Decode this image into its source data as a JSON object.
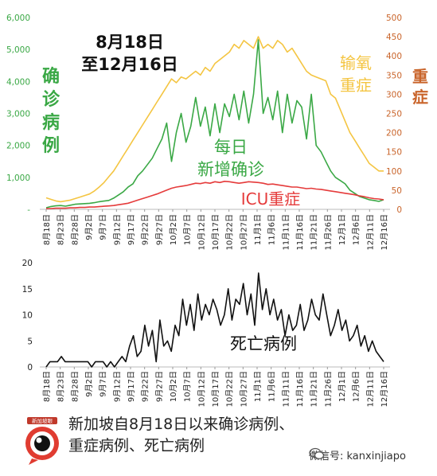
{
  "chart_data": [
    {
      "type": "line",
      "title": "8月18日\n至12月16日",
      "left_axis_label": "确诊病例",
      "right_axis_labels": [
        "输氧重症",
        "重症"
      ],
      "y_left_ticks": [
        "-",
        "1,000",
        "2,000",
        "3,000",
        "4,000",
        "5,000",
        "6,000"
      ],
      "y_left_range": [
        0,
        6000
      ],
      "y_right_ticks": [
        "0",
        "50",
        "100",
        "150",
        "200",
        "250",
        "300",
        "350",
        "400",
        "450",
        "500"
      ],
      "y_right_range": [
        0,
        500
      ],
      "x_ticks": [
        "8月18日",
        "8月23日",
        "8月28日",
        "9月2日",
        "9月7日",
        "9月12日",
        "9月17日",
        "9月22日",
        "9月27日",
        "10月2日",
        "10月7日",
        "10月12日",
        "10月17日",
        "10月22日",
        "10月27日",
        "11月1日",
        "11月6日",
        "11月11日",
        "11月16日",
        "11月21日",
        "11月26日",
        "12月1日",
        "12月6日",
        "12月11日",
        "12月16日"
      ],
      "series": [
        {
          "name": "每日新增确诊",
          "axis": "left",
          "color": "#3aa845",
          "values": [
            50,
            90,
            110,
            120,
            100,
            130,
            160,
            170,
            180,
            190,
            210,
            240,
            260,
            280,
            350,
            450,
            550,
            700,
            800,
            1050,
            1200,
            1400,
            1600,
            1900,
            2200,
            2700,
            1500,
            2400,
            3000,
            2100,
            2600,
            3500,
            2600,
            3200,
            2300,
            3300,
            2400,
            3300,
            2900,
            3600,
            2800,
            3700,
            2700,
            3600,
            5300,
            3000,
            3500,
            2800,
            3700,
            2400,
            3600,
            2700,
            3400,
            3200,
            2200,
            3600,
            2000,
            1800,
            1500,
            1200,
            1000,
            900,
            800,
            600,
            500,
            400,
            350,
            300,
            280,
            250,
            300
          ]
        },
        {
          "name": "输氧重症",
          "axis": "right",
          "color": "#f4c542",
          "values": [
            30,
            26,
            22,
            20,
            22,
            24,
            28,
            32,
            36,
            40,
            48,
            58,
            70,
            85,
            100,
            120,
            140,
            160,
            180,
            200,
            220,
            240,
            260,
            280,
            300,
            320,
            340,
            330,
            345,
            340,
            350,
            360,
            350,
            370,
            360,
            380,
            390,
            400,
            410,
            430,
            420,
            440,
            430,
            420,
            450,
            420,
            430,
            420,
            440,
            430,
            410,
            420,
            400,
            380,
            360,
            350,
            345,
            340,
            335,
            300,
            290,
            260,
            230,
            200,
            180,
            160,
            140,
            120,
            110,
            100,
            100
          ]
        },
        {
          "name": "ICU重症",
          "axis": "right",
          "color": "#e53b3b",
          "values": [
            2,
            2,
            3,
            3,
            3,
            4,
            4,
            5,
            5,
            6,
            6,
            7,
            8,
            9,
            10,
            12,
            14,
            16,
            20,
            24,
            28,
            32,
            36,
            40,
            45,
            50,
            55,
            58,
            60,
            62,
            65,
            68,
            67,
            70,
            68,
            72,
            70,
            73,
            72,
            70,
            68,
            70,
            72,
            71,
            70,
            68,
            65,
            66,
            64,
            62,
            60,
            58,
            58,
            56,
            54,
            55,
            53,
            52,
            50,
            48,
            46,
            44,
            42,
            40,
            38,
            35,
            33,
            30,
            28,
            27,
            25
          ]
        }
      ],
      "annotations": [
        "每日\n新增确诊",
        "输氧\n重症",
        "ICU重症"
      ]
    },
    {
      "type": "line",
      "title": "",
      "series_label": "死亡病例",
      "y_ticks": [
        "0",
        "5",
        "10",
        "15",
        "20"
      ],
      "y_range": [
        0,
        20
      ],
      "x_ticks": [
        "8月18日",
        "8月23日",
        "8月28日",
        "9月2日",
        "9月7日",
        "9月12日",
        "9月17日",
        "9月22日",
        "9月27日",
        "10月2日",
        "10月7日",
        "10月12日",
        "10月17日",
        "10月22日",
        "10月27日",
        "11月1日",
        "11月6日",
        "11月11日",
        "11月16日",
        "11月21日",
        "11月26日",
        "12月1日",
        "12月6日",
        "12月11日",
        "12月16日"
      ],
      "series": [
        {
          "name": "死亡病例",
          "color": "#111111",
          "values": [
            0,
            1,
            1,
            1,
            2,
            1,
            1,
            1,
            1,
            1,
            1,
            1,
            0,
            1,
            1,
            1,
            0,
            1,
            0,
            1,
            2,
            1,
            4,
            6,
            2,
            3,
            8,
            4,
            7,
            1,
            9,
            4,
            5,
            3,
            8,
            6,
            13,
            8,
            12,
            7,
            14,
            9,
            12,
            10,
            13,
            11,
            8,
            10,
            15,
            9,
            13,
            12,
            16,
            10,
            14,
            8,
            18,
            11,
            15,
            10,
            13,
            9,
            11,
            6,
            10,
            7,
            8,
            12,
            7,
            9,
            13,
            10,
            9,
            14,
            10,
            6,
            8,
            11,
            7,
            9,
            5,
            6,
            8,
            4,
            6,
            3,
            5,
            3,
            2,
            1
          ]
        }
      ]
    }
  ],
  "caption": "新加坡自8月18日以来确诊病例、\n重症病例、死亡病例",
  "logo_text": "新加坡眼",
  "wechat_label": "微信号: kanxinjiapo",
  "icons": [
    "logo-eye-icon",
    "wechat-icon"
  ],
  "colors": {
    "green": "#3aa845",
    "yellow": "#f4c542",
    "red": "#e53b3b",
    "brown": "#c9642a",
    "black": "#111111"
  }
}
